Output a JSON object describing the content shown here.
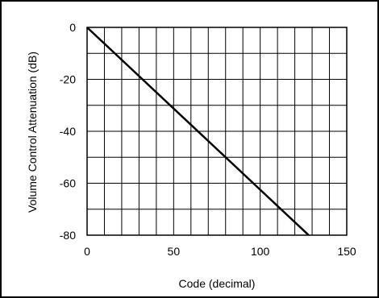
{
  "chart_data": {
    "type": "line",
    "title": "",
    "xlabel": "Code (decimal)",
    "ylabel": "Volume Control Attenuation (dB)",
    "xlim": [
      0,
      150
    ],
    "ylim": [
      -80,
      0
    ],
    "x_ticks": [
      0,
      50,
      100,
      150
    ],
    "y_ticks": [
      0,
      -20,
      -40,
      -60,
      -80
    ],
    "x_tick_labels": [
      "0",
      "50",
      "100",
      "150"
    ],
    "y_tick_labels": [
      "0",
      "-20",
      "-40",
      "-60",
      "-80"
    ],
    "grid": true,
    "x_grid_step": 10,
    "y_grid_step": 10,
    "series": [
      {
        "x": [
          0,
          128
        ],
        "y": [
          0,
          -80
        ],
        "color": "#000000"
      }
    ],
    "border_color": "#000000"
  }
}
